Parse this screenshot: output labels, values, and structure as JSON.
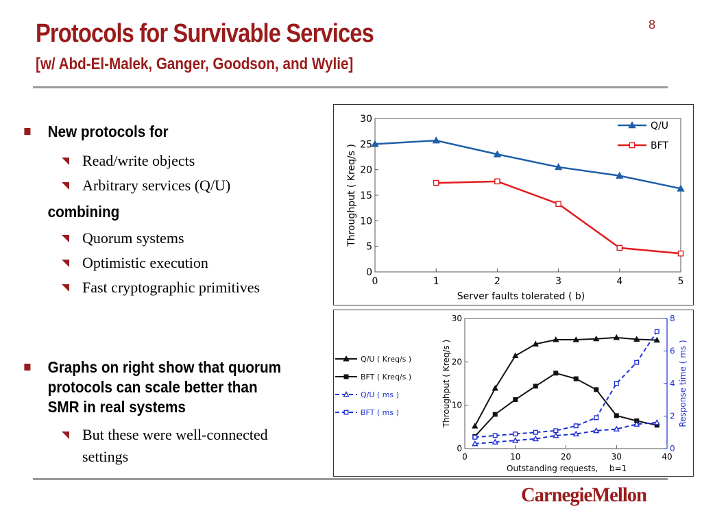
{
  "slide": {
    "title": "Protocols for Survivable Services",
    "subtitle": "[w/ Abd-El-Malek, Ganger, Goodson, and Wylie]",
    "page_number": "8",
    "logo": "CarnegieMellon"
  },
  "bullets": {
    "b1_label": "New protocols for",
    "b1_items": [
      "Read/write objects",
      "Arbitrary services (Q/U)"
    ],
    "combining_label": "combining",
    "combining_items": [
      "Quorum systems",
      "Optimistic execution",
      "Fast cryptographic primitives"
    ],
    "b2_lines": [
      "Graphs on right show that quorum",
      "protocols can scale better than",
      "SMR in real systems"
    ],
    "b2_item_lines": [
      "But these were well-connected",
      "settings"
    ]
  },
  "colors": {
    "accent": "#9a1b1b",
    "qu": "#1f5fa8",
    "bft": "#e31a1c",
    "rt": "#1f2fd6"
  },
  "chart_data": [
    {
      "type": "line",
      "xlabel": "Server faults tolerated ( b)",
      "ylabel": "Throughput (   Kreq/s )",
      "xlim": [
        0,
        5
      ],
      "ylim": [
        0,
        30
      ],
      "xticks": [
        "0",
        "1",
        "2",
        "3",
        "4",
        "5"
      ],
      "yticks": [
        "0",
        "5",
        "10",
        "15",
        "20",
        "25",
        "30"
      ],
      "legend_position": "top-right",
      "series": [
        {
          "name": "Q/U",
          "marker": "triangle",
          "x": [
            0,
            1,
            2,
            3,
            4,
            5
          ],
          "y": [
            25,
            25.7,
            23,
            20.5,
            18.8,
            16.3
          ]
        },
        {
          "name": "BFT",
          "marker": "square",
          "x": [
            1,
            2,
            3,
            4,
            5
          ],
          "y": [
            17.4,
            17.7,
            13.3,
            4.7,
            3.6
          ]
        }
      ]
    },
    {
      "type": "line",
      "xlabel": "Outstanding requests,",
      "xlabel_note": "b=1",
      "ylabel": "Throughput (   Kreq/s )",
      "y2label": "Response time (    ms )",
      "xlim": [
        0,
        40
      ],
      "ylim": [
        0,
        30
      ],
      "y2lim": [
        0,
        8
      ],
      "xticks": [
        "0",
        "10",
        "20",
        "30",
        "40"
      ],
      "yticks": [
        "0",
        "10",
        "20",
        "30"
      ],
      "y2ticks": [
        "0",
        "2",
        "4",
        "6",
        "8"
      ],
      "legend_position": "left",
      "series": [
        {
          "name": "Q/U ( Kreq/s  )",
          "axis": "left",
          "style": "solid",
          "marker": "triangle",
          "x": [
            2,
            6,
            10,
            14,
            18,
            22,
            26,
            30,
            34,
            38
          ],
          "y": [
            5.2,
            13.9,
            21.4,
            24.1,
            25.1,
            25.1,
            25.3,
            25.6,
            25.2,
            25.0
          ]
        },
        {
          "name": "BFT (  Kreq/s  )",
          "axis": "left",
          "style": "solid",
          "marker": "square",
          "x": [
            2,
            6,
            10,
            14,
            18,
            22,
            26,
            30,
            34,
            38
          ],
          "y": [
            2.8,
            7.9,
            11.3,
            14.4,
            17.4,
            16.1,
            13.6,
            7.6,
            6.4,
            5.4
          ]
        },
        {
          "name": "Q/U ( ms )",
          "axis": "right",
          "style": "dashed",
          "marker": "triangle",
          "x": [
            2,
            6,
            10,
            14,
            18,
            22,
            26,
            30,
            34,
            38
          ],
          "y": [
            0.3,
            0.4,
            0.5,
            0.6,
            0.8,
            0.9,
            1.1,
            1.2,
            1.5,
            1.6
          ]
        },
        {
          "name": "BFT (  ms )",
          "axis": "right",
          "style": "dashed",
          "marker": "square",
          "x": [
            2,
            6,
            10,
            14,
            18,
            22,
            26,
            30,
            34,
            38
          ],
          "y": [
            0.7,
            0.8,
            0.9,
            1.0,
            1.1,
            1.4,
            1.9,
            4.0,
            5.3,
            7.2
          ]
        }
      ]
    }
  ]
}
